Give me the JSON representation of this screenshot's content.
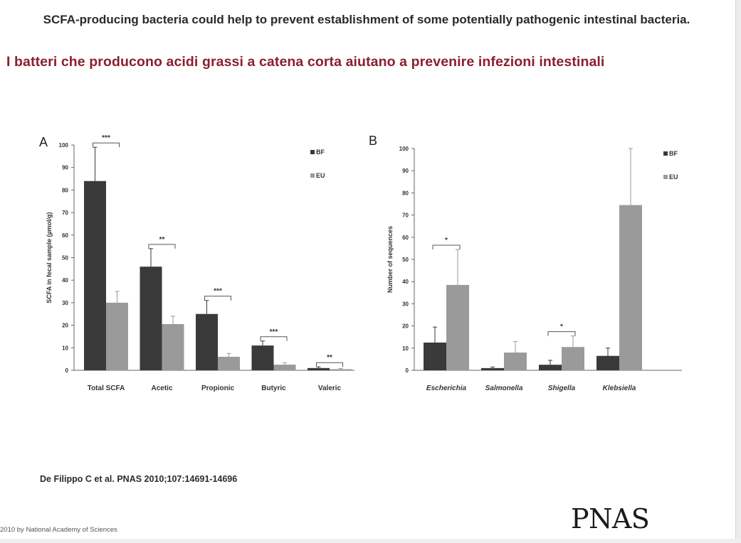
{
  "slide": {
    "title_en": "SCFA-producing bacteria could help to prevent establishment of some potentially pathogenic intestinal bacteria.",
    "title_it": "I batteri che producono acidi grassi a catena corta aiutano a prevenire infezioni intestinali",
    "citation": "De Filippo C et al. PNAS 2010;107:14691-14696",
    "copyright": "2010 by National Academy of Sciences",
    "logo_text": "PNAS",
    "colors": {
      "title_it": "#8c1f2e",
      "bf": "#3a3a3a",
      "eu": "#9a9a9a"
    }
  },
  "chart_data": [
    {
      "panel": "A",
      "type": "bar",
      "ylabel": "SCFA in fecal sample (µmol/g)",
      "ylim": [
        0,
        100
      ],
      "yticks": [
        0,
        10,
        20,
        30,
        40,
        50,
        60,
        70,
        80,
        90,
        100
      ],
      "categories": [
        "Total SCFA",
        "Acetic",
        "Propionic",
        "Butyric",
        "Valeric"
      ],
      "series": [
        {
          "name": "BF",
          "values": [
            84,
            46,
            25,
            11,
            1
          ],
          "errors": [
            15,
            8,
            6,
            2,
            0.5
          ]
        },
        {
          "name": "EU",
          "values": [
            30,
            20.5,
            6,
            2.5,
            0.5
          ],
          "errors": [
            5,
            3.5,
            1.5,
            0.8,
            0.3
          ]
        }
      ],
      "significance": [
        "***",
        "**",
        "***",
        "***",
        "**"
      ],
      "legend_position": "top-right",
      "grid": false
    },
    {
      "panel": "B",
      "type": "bar",
      "ylabel": "Number of sequences",
      "ylim": [
        0,
        100
      ],
      "yticks": [
        0,
        10,
        20,
        30,
        40,
        50,
        60,
        70,
        80,
        90,
        100
      ],
      "categories": [
        "Escherichia",
        "Salmonella",
        "Shigella",
        "Klebsiella"
      ],
      "series": [
        {
          "name": "BF",
          "values": [
            12.5,
            1,
            2.5,
            6.5
          ],
          "errors": [
            7,
            0.5,
            2,
            3.5
          ]
        },
        {
          "name": "EU",
          "values": [
            38.5,
            8,
            10.5,
            74.5
          ],
          "errors": [
            16,
            5,
            5,
            25.5
          ]
        }
      ],
      "significance": [
        "*",
        "",
        "*",
        ""
      ],
      "legend_position": "top-right",
      "grid": false
    }
  ]
}
